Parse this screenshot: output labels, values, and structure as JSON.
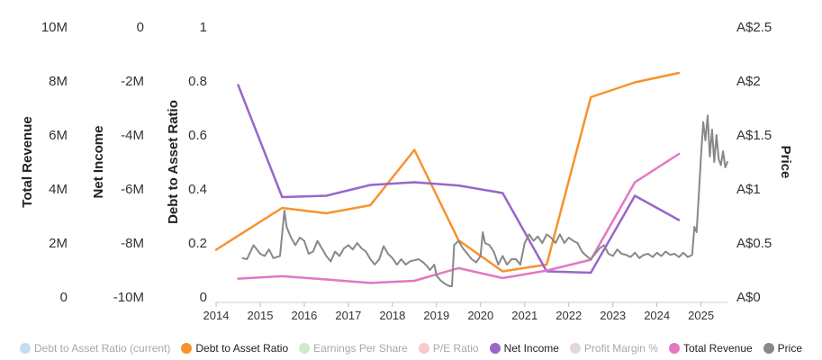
{
  "chart_data": {
    "type": "line",
    "x_ticks": [
      "2014",
      "2015",
      "2016",
      "2017",
      "2018",
      "2019",
      "2020",
      "2021",
      "2022",
      "2023",
      "2024",
      "2025"
    ],
    "axes": [
      {
        "id": "revenue",
        "title": "Total Revenue",
        "range": [
          0,
          10000000
        ],
        "ticks": [
          {
            "v": 0,
            "label": "0"
          },
          {
            "v": 2000000,
            "label": "2M"
          },
          {
            "v": 4000000,
            "label": "4M"
          },
          {
            "v": 6000000,
            "label": "6M"
          },
          {
            "v": 8000000,
            "label": "8M"
          },
          {
            "v": 10000000,
            "label": "10M"
          }
        ]
      },
      {
        "id": "netincome",
        "title": "Net Income",
        "range": [
          -10000000,
          0
        ],
        "ticks": [
          {
            "v": -10000000,
            "label": "-10M"
          },
          {
            "v": -8000000,
            "label": "-8M"
          },
          {
            "v": -6000000,
            "label": "-6M"
          },
          {
            "v": -4000000,
            "label": "-4M"
          },
          {
            "v": -2000000,
            "label": "-2M"
          },
          {
            "v": 0,
            "label": "0"
          }
        ]
      },
      {
        "id": "debt",
        "title": "Debt to Asset Ratio",
        "range": [
          0,
          1
        ],
        "ticks": [
          {
            "v": 0,
            "label": "0"
          },
          {
            "v": 0.2,
            "label": "0.2"
          },
          {
            "v": 0.4,
            "label": "0.4"
          },
          {
            "v": 0.6,
            "label": "0.6"
          },
          {
            "v": 0.8,
            "label": "0.8"
          },
          {
            "v": 1,
            "label": "1"
          }
        ]
      },
      {
        "id": "price",
        "title": "Price",
        "range": [
          0,
          2.5
        ],
        "ticks": [
          {
            "v": 0,
            "label": "A$0"
          },
          {
            "v": 0.5,
            "label": "A$0.5"
          },
          {
            "v": 1,
            "label": "A$1"
          },
          {
            "v": 1.5,
            "label": "A$1.5"
          },
          {
            "v": 2,
            "label": "A$2"
          },
          {
            "v": 2.5,
            "label": "A$2.5"
          }
        ]
      }
    ],
    "series": [
      {
        "name": "Debt to Asset Ratio",
        "axis": "debt",
        "color": "#f7922e",
        "points": [
          [
            2014.0,
            0.175
          ],
          [
            2015.5,
            0.33
          ],
          [
            2016.5,
            0.31
          ],
          [
            2017.5,
            0.34
          ],
          [
            2018.5,
            0.545
          ],
          [
            2019.5,
            0.21
          ],
          [
            2020.5,
            0.095
          ],
          [
            2021.5,
            0.12
          ],
          [
            2022.5,
            0.74
          ],
          [
            2023.5,
            0.795
          ],
          [
            2024.5,
            0.83
          ]
        ]
      },
      {
        "name": "Net Income",
        "axis": "netincome",
        "color": "#9966cc",
        "points": [
          [
            2014.5,
            -2150000
          ],
          [
            2015.5,
            -6300000
          ],
          [
            2016.5,
            -6250000
          ],
          [
            2017.5,
            -5850000
          ],
          [
            2018.5,
            -5750000
          ],
          [
            2019.5,
            -5870000
          ],
          [
            2020.5,
            -6150000
          ],
          [
            2021.5,
            -9050000
          ],
          [
            2022.5,
            -9100000
          ],
          [
            2023.5,
            -6250000
          ],
          [
            2024.5,
            -7150000
          ]
        ]
      },
      {
        "name": "Total Revenue",
        "axis": "revenue",
        "color": "#e377c2",
        "points": [
          [
            2014.5,
            680000
          ],
          [
            2015.5,
            770000
          ],
          [
            2016.5,
            650000
          ],
          [
            2017.5,
            520000
          ],
          [
            2018.5,
            600000
          ],
          [
            2019.5,
            1070000
          ],
          [
            2020.5,
            700000
          ],
          [
            2021.5,
            980000
          ],
          [
            2022.5,
            1380000
          ],
          [
            2023.5,
            4250000
          ],
          [
            2024.5,
            5300000
          ]
        ]
      },
      {
        "name": "Price",
        "axis": "price",
        "color": "#888888",
        "points": [
          [
            2014.6,
            0.36
          ],
          [
            2014.7,
            0.35
          ],
          [
            2014.85,
            0.48
          ],
          [
            2015.0,
            0.4
          ],
          [
            2015.1,
            0.38
          ],
          [
            2015.2,
            0.44
          ],
          [
            2015.3,
            0.36
          ],
          [
            2015.45,
            0.38
          ],
          [
            2015.55,
            0.8
          ],
          [
            2015.6,
            0.65
          ],
          [
            2015.7,
            0.55
          ],
          [
            2015.8,
            0.48
          ],
          [
            2015.9,
            0.55
          ],
          [
            2016.0,
            0.52
          ],
          [
            2016.1,
            0.4
          ],
          [
            2016.2,
            0.42
          ],
          [
            2016.3,
            0.52
          ],
          [
            2016.4,
            0.45
          ],
          [
            2016.5,
            0.38
          ],
          [
            2016.6,
            0.33
          ],
          [
            2016.7,
            0.42
          ],
          [
            2016.8,
            0.38
          ],
          [
            2016.9,
            0.45
          ],
          [
            2017.0,
            0.48
          ],
          [
            2017.1,
            0.44
          ],
          [
            2017.2,
            0.5
          ],
          [
            2017.3,
            0.45
          ],
          [
            2017.4,
            0.42
          ],
          [
            2017.5,
            0.35
          ],
          [
            2017.6,
            0.3
          ],
          [
            2017.7,
            0.35
          ],
          [
            2017.8,
            0.47
          ],
          [
            2017.9,
            0.4
          ],
          [
            2018.0,
            0.36
          ],
          [
            2018.1,
            0.3
          ],
          [
            2018.2,
            0.35
          ],
          [
            2018.3,
            0.3
          ],
          [
            2018.4,
            0.33
          ],
          [
            2018.5,
            0.34
          ],
          [
            2018.6,
            0.35
          ],
          [
            2018.7,
            0.32
          ],
          [
            2018.8,
            0.28
          ],
          [
            2018.85,
            0.25
          ],
          [
            2018.95,
            0.3
          ],
          [
            2019.0,
            0.2
          ],
          [
            2019.1,
            0.15
          ],
          [
            2019.2,
            0.12
          ],
          [
            2019.3,
            0.1
          ],
          [
            2019.35,
            0.1
          ],
          [
            2019.4,
            0.48
          ],
          [
            2019.5,
            0.52
          ],
          [
            2019.6,
            0.45
          ],
          [
            2019.7,
            0.4
          ],
          [
            2019.8,
            0.35
          ],
          [
            2019.9,
            0.32
          ],
          [
            2020.0,
            0.38
          ],
          [
            2020.05,
            0.6
          ],
          [
            2020.1,
            0.5
          ],
          [
            2020.2,
            0.48
          ],
          [
            2020.3,
            0.42
          ],
          [
            2020.4,
            0.3
          ],
          [
            2020.5,
            0.38
          ],
          [
            2020.6,
            0.3
          ],
          [
            2020.7,
            0.35
          ],
          [
            2020.8,
            0.35
          ],
          [
            2020.9,
            0.3
          ],
          [
            2021.0,
            0.5
          ],
          [
            2021.1,
            0.58
          ],
          [
            2021.2,
            0.52
          ],
          [
            2021.3,
            0.56
          ],
          [
            2021.4,
            0.5
          ],
          [
            2021.5,
            0.58
          ],
          [
            2021.6,
            0.55
          ],
          [
            2021.7,
            0.5
          ],
          [
            2021.8,
            0.58
          ],
          [
            2021.9,
            0.5
          ],
          [
            2022.0,
            0.55
          ],
          [
            2022.1,
            0.52
          ],
          [
            2022.2,
            0.5
          ],
          [
            2022.3,
            0.42
          ],
          [
            2022.4,
            0.38
          ],
          [
            2022.5,
            0.35
          ],
          [
            2022.6,
            0.4
          ],
          [
            2022.7,
            0.45
          ],
          [
            2022.8,
            0.48
          ],
          [
            2022.9,
            0.4
          ],
          [
            2023.0,
            0.38
          ],
          [
            2023.1,
            0.44
          ],
          [
            2023.2,
            0.4
          ],
          [
            2023.3,
            0.39
          ],
          [
            2023.4,
            0.37
          ],
          [
            2023.5,
            0.41
          ],
          [
            2023.6,
            0.36
          ],
          [
            2023.7,
            0.39
          ],
          [
            2023.8,
            0.4
          ],
          [
            2023.9,
            0.37
          ],
          [
            2024.0,
            0.41
          ],
          [
            2024.1,
            0.38
          ],
          [
            2024.2,
            0.42
          ],
          [
            2024.3,
            0.39
          ],
          [
            2024.4,
            0.4
          ],
          [
            2024.5,
            0.37
          ],
          [
            2024.6,
            0.41
          ],
          [
            2024.7,
            0.37
          ],
          [
            2024.8,
            0.39
          ],
          [
            2024.85,
            0.65
          ],
          [
            2024.9,
            0.6
          ],
          [
            2024.95,
            0.95
          ],
          [
            2025.0,
            1.3
          ],
          [
            2025.05,
            1.62
          ],
          [
            2025.1,
            1.45
          ],
          [
            2025.15,
            1.68
          ],
          [
            2025.2,
            1.3
          ],
          [
            2025.25,
            1.55
          ],
          [
            2025.3,
            1.25
          ],
          [
            2025.35,
            1.5
          ],
          [
            2025.4,
            1.28
          ],
          [
            2025.45,
            1.22
          ],
          [
            2025.5,
            1.35
          ],
          [
            2025.55,
            1.2
          ],
          [
            2025.6,
            1.25
          ]
        ]
      }
    ],
    "legend": [
      {
        "label": "Debt to Asset Ratio (current)",
        "color": "#c5dcef",
        "muted": true
      },
      {
        "label": "Debt to Asset Ratio",
        "color": "#f7922e",
        "muted": false
      },
      {
        "label": "Earnings Per Share",
        "color": "#cfe9cc",
        "muted": true
      },
      {
        "label": "P/E Ratio",
        "color": "#f6caca",
        "muted": true
      },
      {
        "label": "Net Income",
        "color": "#9966cc",
        "muted": false
      },
      {
        "label": "Profit Margin %",
        "color": "#e3d8d5",
        "muted": true
      },
      {
        "label": "Total Revenue",
        "color": "#e377c2",
        "muted": false
      },
      {
        "label": "Price",
        "color": "#888888",
        "muted": false
      }
    ],
    "legend_position": "bottom",
    "grid": false
  }
}
